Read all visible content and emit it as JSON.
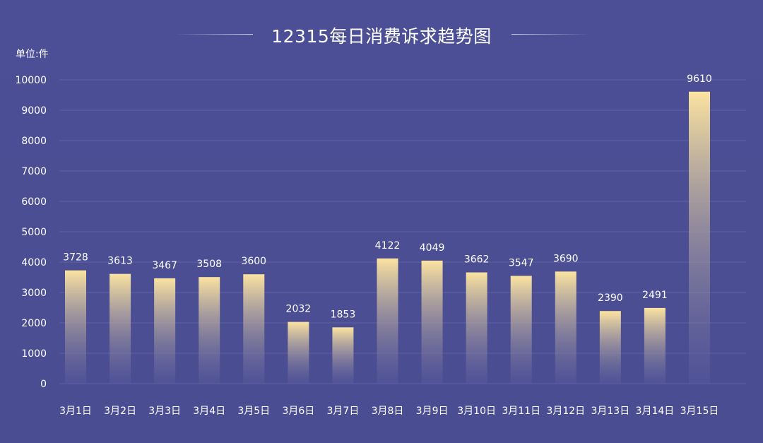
{
  "chart_data": {
    "type": "bar",
    "title": "12315每日消费诉求趋势图",
    "unit_label": "单位:件",
    "categories": [
      "3月1日",
      "3月2日",
      "3月3日",
      "3月4日",
      "3月5日",
      "3月6日",
      "3月7日",
      "3月8日",
      "3月9日",
      "3月10日",
      "3月11日",
      "3月12日",
      "3月13日",
      "3月14日",
      "3月15日"
    ],
    "values": [
      3728,
      3613,
      3467,
      3508,
      3600,
      2032,
      1853,
      4122,
      4049,
      3662,
      3547,
      3690,
      2390,
      2491,
      9610
    ],
    "data_labels": [
      "3728",
      "3613",
      "3467",
      "3508",
      "3600",
      "2032",
      "1853",
      "4122",
      "4049",
      "3662",
      "3547",
      "3690",
      "2390",
      "2491",
      "9610"
    ],
    "yticks": [
      0,
      1000,
      2000,
      3000,
      4000,
      5000,
      6000,
      7000,
      8000,
      9000,
      10000
    ],
    "ytick_labels": [
      "0",
      "1000",
      "2000",
      "3000",
      "4000",
      "5000",
      "6000",
      "7000",
      "8000",
      "9000",
      "10000"
    ],
    "ylim": [
      0,
      10000
    ],
    "grid": true,
    "legend": "none",
    "colors": {
      "background": "#4c4e94",
      "bar_top": "#fbe3a0",
      "bar_bottom": "#5a5ca0",
      "grid": "#5f61a6",
      "text": "#ffffff"
    }
  }
}
